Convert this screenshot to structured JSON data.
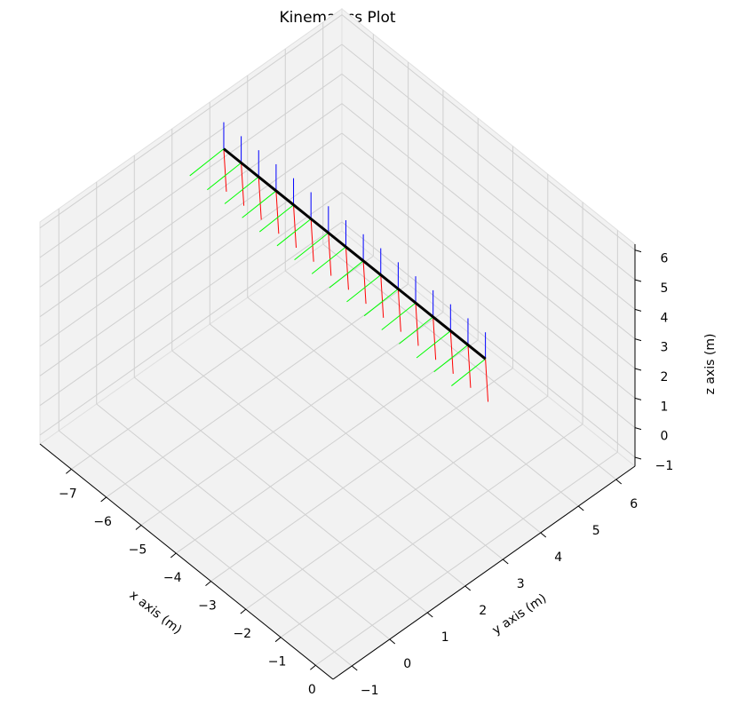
{
  "chart_data": {
    "type": "line3d",
    "title": "Kinematics Plot",
    "x_label": "x axis (m)",
    "y_label": "y axis (m)",
    "z_label": "z axis (m)",
    "series": [
      {
        "color": "#000000",
        "x": [
          -7.5,
          -7,
          -6.5,
          -6,
          -5.5,
          -5,
          -4.5,
          -4,
          -3.5,
          -3,
          -2.5,
          -2,
          -1.5,
          -1,
          -0.5,
          0
        ],
        "y": [
          3,
          3,
          3,
          3,
          3,
          3,
          3,
          3,
          3,
          3,
          3,
          3,
          3,
          3,
          3,
          3
        ],
        "z": [
          5,
          5,
          5,
          5,
          5,
          5,
          5,
          5,
          5,
          5,
          5,
          5,
          5,
          5,
          5,
          5
        ]
      }
    ],
    "frame_colors": [
      "#ff0000",
      "#00ff00",
      "#0000ff"
    ],
    "xlim": [
      -7.9,
      0.5
    ],
    "ylim": [
      -1.5,
      6.5
    ],
    "zlim": [
      -1.3,
      6.2
    ],
    "xticks": [
      {
        "value": -7,
        "label": "−7"
      },
      {
        "value": -6,
        "label": "−6"
      },
      {
        "value": -5,
        "label": "−5"
      },
      {
        "value": -4,
        "label": "−4"
      },
      {
        "value": -3,
        "label": "−3"
      },
      {
        "value": -2,
        "label": "−2"
      },
      {
        "value": -1,
        "label": "−1"
      },
      0
    ],
    "yticks": [
      {
        "value": -1,
        "label": "−1"
      },
      0,
      1,
      2,
      3,
      4,
      5,
      6
    ],
    "zticks": [
      {
        "value": -1,
        "label": "−1"
      },
      0,
      1,
      2,
      3,
      4,
      5,
      6
    ],
    "grid": true
  }
}
